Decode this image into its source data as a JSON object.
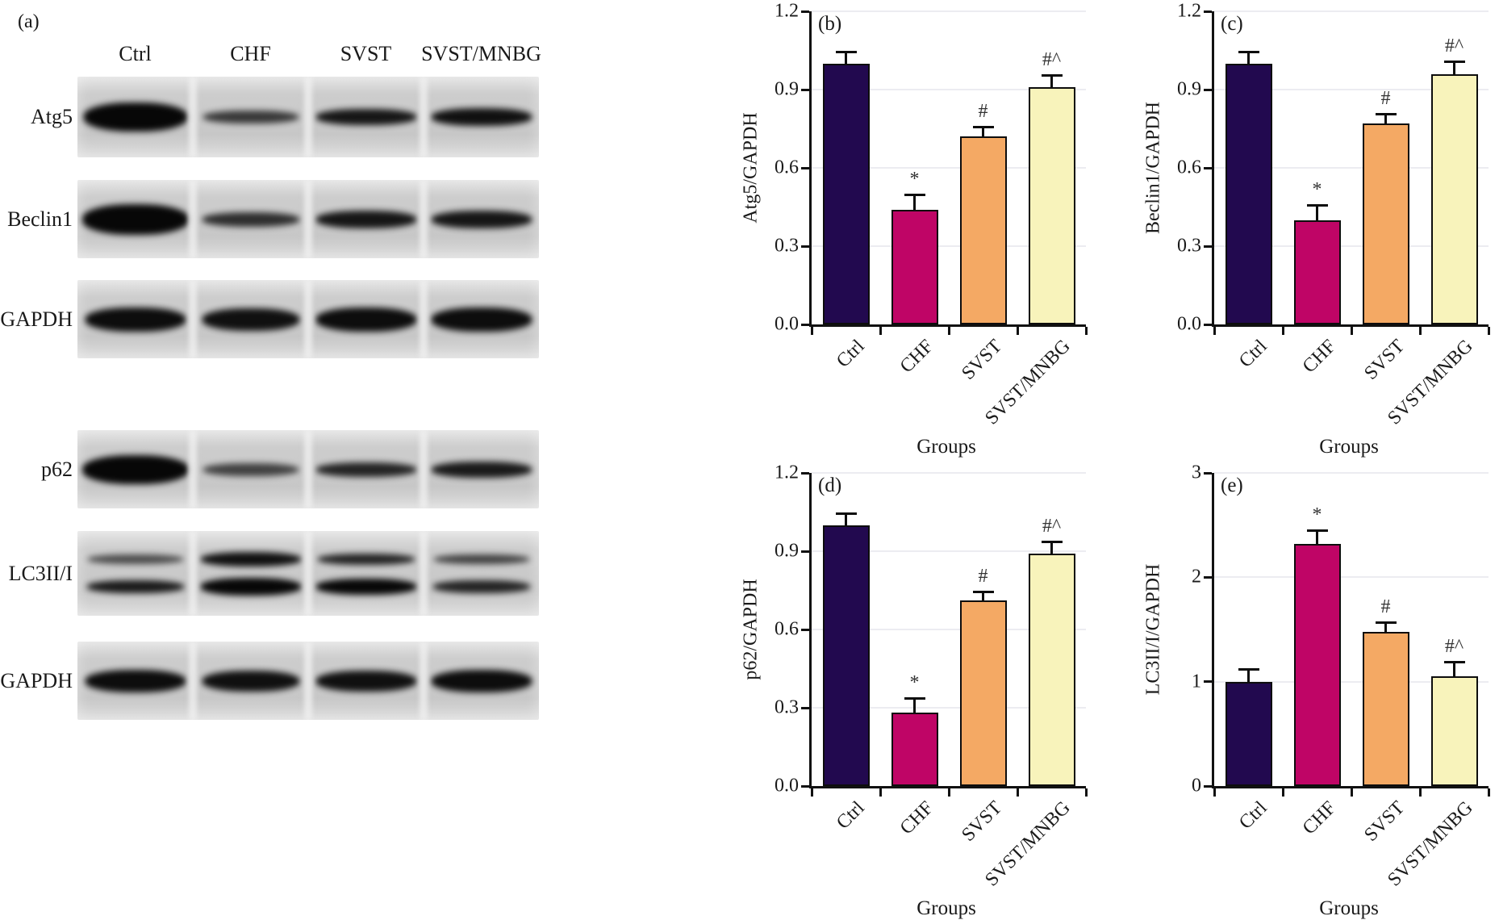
{
  "figure": {
    "background": "#ffffff"
  },
  "colors": {
    "groups": [
      "#22094f",
      "#bf0566",
      "#f4a964",
      "#f8f3bb"
    ],
    "bar_outline": "#0d0d0d",
    "grid": "#ececf1",
    "axis": "#111111",
    "annotation": "#333333"
  },
  "panel_a": {
    "label": "(a)",
    "lane_headers": [
      "Ctrl",
      "CHF",
      "SVST",
      "SVST/MNBG"
    ],
    "rows": [
      {
        "label": "Atg5",
        "bands": [
          [
            [
              36,
              0.98,
              1,
              0
            ]
          ],
          [
            [
              16,
              0.9,
              0.75,
              0
            ]
          ],
          [
            [
              20,
              0.95,
              0.92,
              0
            ]
          ],
          [
            [
              22,
              0.95,
              0.95,
              0
            ]
          ]
        ]
      },
      {
        "label": "Beclin1",
        "bands": [
          [
            [
              38,
              1,
              1,
              0
            ]
          ],
          [
            [
              18,
              0.92,
              0.8,
              0
            ]
          ],
          [
            [
              22,
              0.95,
              0.92,
              0
            ]
          ],
          [
            [
              22,
              0.95,
              0.92,
              0
            ]
          ]
        ]
      },
      {
        "label": "GAPDH",
        "bands": [
          [
            [
              30,
              0.95,
              0.97,
              0
            ]
          ],
          [
            [
              28,
              0.92,
              0.95,
              0
            ]
          ],
          [
            [
              30,
              0.95,
              0.97,
              0
            ]
          ],
          [
            [
              30,
              0.95,
              0.97,
              0
            ]
          ]
        ]
      },
      {
        "label": "p62",
        "bands": [
          [
            [
              36,
              1,
              1,
              0
            ]
          ],
          [
            [
              16,
              0.9,
              0.7,
              0
            ]
          ],
          [
            [
              18,
              0.95,
              0.85,
              0
            ]
          ],
          [
            [
              20,
              0.95,
              0.9,
              0
            ]
          ]
        ]
      },
      {
        "label": "LC3II/I",
        "bands": [
          [
            [
              12,
              0.9,
              0.65,
              -18
            ],
            [
              16,
              0.92,
              0.9,
              16
            ]
          ],
          [
            [
              18,
              0.95,
              0.95,
              -18
            ],
            [
              22,
              0.95,
              1,
              16
            ]
          ],
          [
            [
              14,
              0.92,
              0.85,
              -18
            ],
            [
              20,
              0.95,
              1,
              16
            ]
          ],
          [
            [
              12,
              0.9,
              0.7,
              -18
            ],
            [
              16,
              0.92,
              0.85,
              16
            ]
          ]
        ]
      },
      {
        "label": "GAPDH",
        "bands": [
          [
            [
              28,
              0.95,
              0.97,
              0
            ]
          ],
          [
            [
              26,
              0.92,
              0.95,
              0
            ]
          ],
          [
            [
              26,
              0.95,
              0.95,
              0
            ]
          ],
          [
            [
              28,
              0.95,
              0.97,
              0
            ]
          ]
        ]
      }
    ]
  },
  "chart_data": [
    {
      "type": "bar",
      "panel": "(b)",
      "ylabel": "Atg5/GAPDH",
      "xlabel": "Groups",
      "categories": [
        "Ctrl",
        "CHF",
        "SVST",
        "SVST/MNBG"
      ],
      "values": [
        1.0,
        0.44,
        0.72,
        0.91
      ],
      "errors": [
        0.05,
        0.06,
        0.04,
        0.05
      ],
      "annotations": [
        "",
        "*",
        "#",
        "#^"
      ],
      "ylim": [
        0,
        1.2
      ],
      "yticks": [
        "0.0",
        "0.3",
        "0.6",
        "0.9",
        "1.2"
      ],
      "grid": true,
      "legend": "none"
    },
    {
      "type": "bar",
      "panel": "(c)",
      "ylabel": "Beclin1/GAPDH",
      "xlabel": "Groups",
      "categories": [
        "Ctrl",
        "CHF",
        "SVST",
        "SVST/MNBG"
      ],
      "values": [
        1.0,
        0.4,
        0.77,
        0.96
      ],
      "errors": [
        0.05,
        0.06,
        0.04,
        0.05
      ],
      "annotations": [
        "",
        "*",
        "#",
        "#^"
      ],
      "ylim": [
        0,
        1.2
      ],
      "yticks": [
        "0.0",
        "0.3",
        "0.6",
        "0.9",
        "1.2"
      ],
      "grid": true,
      "legend": "none"
    },
    {
      "type": "bar",
      "panel": "(d)",
      "ylabel": "p62/GAPDH",
      "xlabel": "Groups",
      "categories": [
        "Ctrl",
        "CHF",
        "SVST",
        "SVST/MNBG"
      ],
      "values": [
        1.0,
        0.28,
        0.71,
        0.89
      ],
      "errors": [
        0.05,
        0.06,
        0.04,
        0.05
      ],
      "annotations": [
        "",
        "*",
        "#",
        "#^"
      ],
      "ylim": [
        0,
        1.2
      ],
      "yticks": [
        "0.0",
        "0.3",
        "0.6",
        "0.9",
        "1.2"
      ],
      "grid": true,
      "legend": "none"
    },
    {
      "type": "bar",
      "panel": "(e)",
      "ylabel": "LC3II/I/GAPDH",
      "xlabel": "Groups",
      "categories": [
        "Ctrl",
        "CHF",
        "SVST",
        "SVST/MNBG"
      ],
      "values": [
        1.0,
        2.32,
        1.48,
        1.05
      ],
      "errors": [
        0.13,
        0.14,
        0.1,
        0.15
      ],
      "annotations": [
        "",
        "*",
        "#",
        "#^"
      ],
      "ylim": [
        0,
        3
      ],
      "yticks": [
        "0",
        "1",
        "2",
        "3"
      ],
      "grid": true,
      "legend": "none"
    }
  ]
}
